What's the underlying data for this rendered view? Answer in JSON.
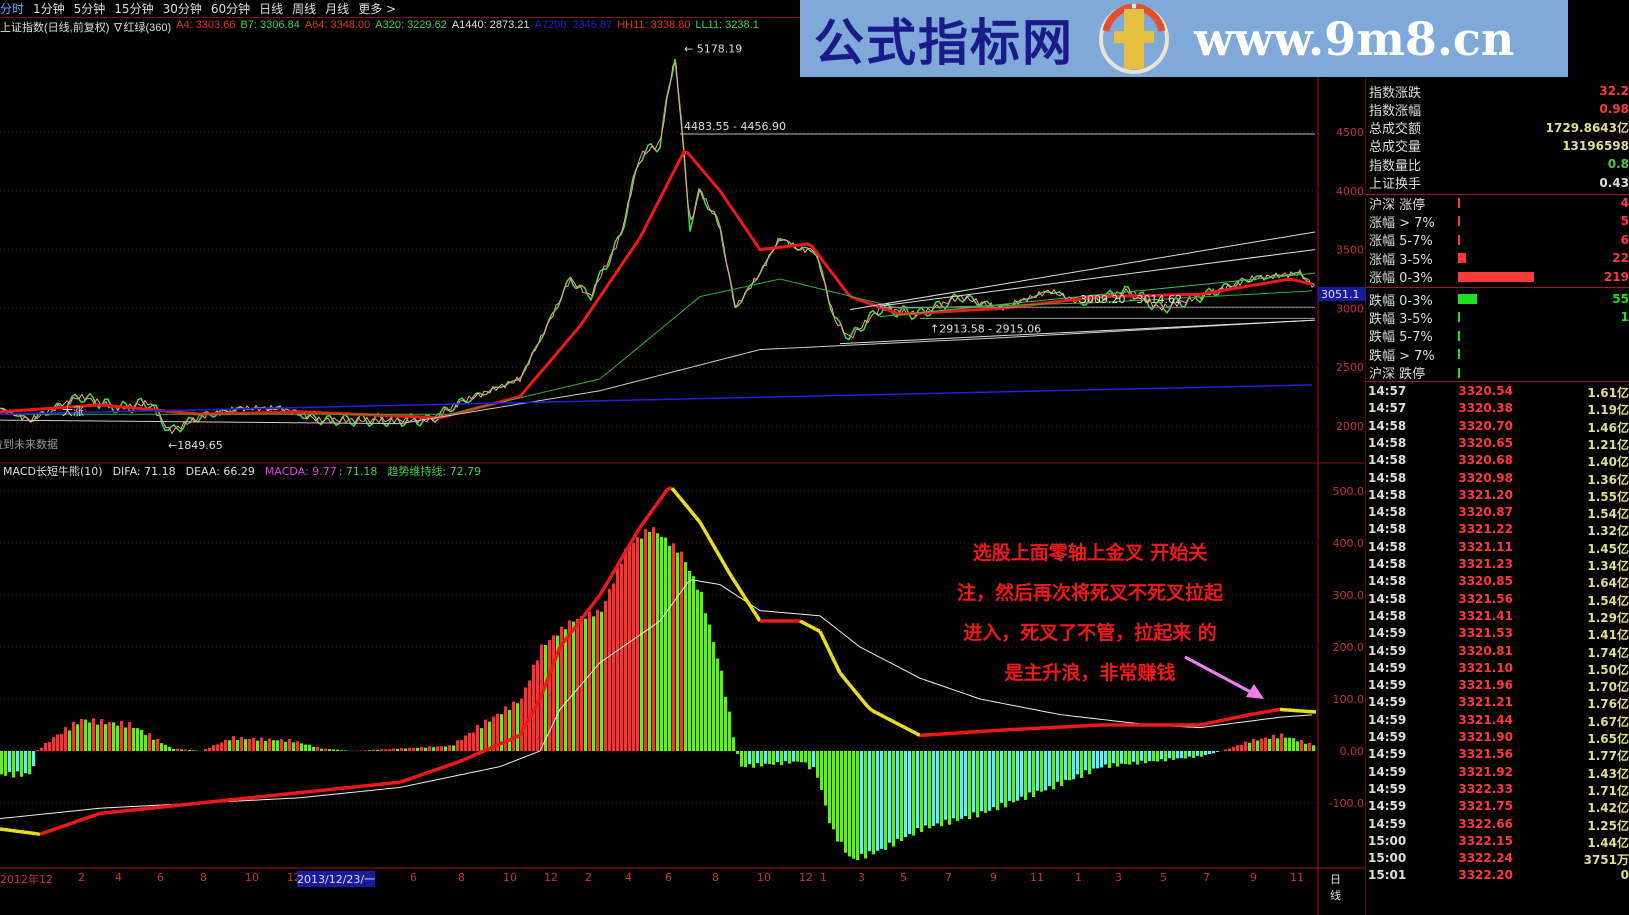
{
  "toolbar": {
    "periods": [
      "分时",
      "1分钟",
      "5分钟",
      "15分钟",
      "30分钟",
      "60分钟",
      "日线",
      "周线",
      "月线",
      "更多 >"
    ],
    "active": "日线"
  },
  "indicator_line": [
    {
      "text": "上证指数(日线,前复权) ∇红绿(360)",
      "color": "#dddddd"
    },
    {
      "text": "A4: 3303.66",
      "color": "#e03030"
    },
    {
      "text": "B7: 3306.84",
      "color": "#40d040"
    },
    {
      "text": "A64: 3348.00",
      "color": "#e03030"
    },
    {
      "text": "A320: 3229.62",
      "color": "#40d040"
    },
    {
      "text": "A1440: 2873.21",
      "color": "#dddddd"
    },
    {
      "text": "A7200: 2345.87",
      "color": "#2020d0"
    },
    {
      "text": "HH11: 3338.80",
      "color": "#e03030"
    },
    {
      "text": "LL11: 3238.1",
      "color": "#40d040"
    }
  ],
  "watermark": {
    "site_name": "公式指标网",
    "url": "www.9m8.cn",
    "logo_text": "www.9m8.cn"
  },
  "price_chart": {
    "y_ticks": [
      "4500",
      "4000",
      "3500",
      "3000",
      "2500",
      "2000"
    ],
    "current_price_tag": "3051.1",
    "annotations": {
      "peak": "5178.19",
      "low": "1849.65",
      "hline": "4483.55 - 4456.90",
      "box1": "3009.20 - 3014.62",
      "box2": "2913.58 - 2915.06",
      "big": "大涨",
      "future": "拉到未来数据"
    }
  },
  "macd_panel": {
    "header": [
      {
        "text": "MACD长短牛熊(10)",
        "color": "#dddddd"
      },
      {
        "text": "DIFA: 71.18",
        "color": "#dddddd"
      },
      {
        "text": "DEAA: 66.29",
        "color": "#dddddd"
      },
      {
        "text": "MACDA: 9.77",
        "color": "#e040e0"
      },
      {
        "text": ": 71.18",
        "color": "#40d040"
      },
      {
        "text": "趋势维持线: 72.79",
        "color": "#40d040"
      }
    ],
    "y_ticks": [
      "500.0",
      "400.0",
      "300.0",
      "200.0",
      "100.0",
      "0.00",
      "-100.0"
    ],
    "note_lines": [
      "选股上面零轴上金叉  开始关",
      "注，然后再次将死叉不死叉拉起",
      "进入，死叉了不管，拉起来 的",
      "是主升浪，非常赚钱"
    ]
  },
  "x_axis": {
    "labels": [
      "2012年12",
      "2",
      "4",
      "6",
      "8",
      "10",
      "12",
      "6",
      "8",
      "10",
      "12",
      "2",
      "4",
      "6",
      "8",
      "10",
      "12",
      "1",
      "3",
      "5",
      "7",
      "9",
      "11",
      "1",
      "3",
      "5",
      "7",
      "9",
      "11"
    ],
    "cursor_date": "2013/12/23/一",
    "period_label": "日线"
  },
  "stats": [
    {
      "label": "指数涨跌",
      "value": "32.2",
      "color": "#ff3838"
    },
    {
      "label": "指数涨幅",
      "value": "0.98",
      "color": "#ff3838"
    },
    {
      "label": "总成交额",
      "value": "1729.8643亿",
      "color": "#dede90"
    },
    {
      "label": "总成交量",
      "value": "13196598",
      "color": "#dede90"
    },
    {
      "label": "指数量比",
      "value": "0.8",
      "color": "#40d040"
    },
    {
      "label": "上证换手",
      "value": "0.43",
      "color": "#dddddd"
    }
  ],
  "breadth": [
    {
      "label": "沪深 涨停",
      "value": "4",
      "color": "#ff3838",
      "fill": 0.01
    },
    {
      "label": "涨幅 > 7%",
      "value": "5",
      "color": "#ff3838",
      "fill": 0.02
    },
    {
      "label": "涨幅 5-7%",
      "value": "6",
      "color": "#ff3838",
      "fill": 0.02
    },
    {
      "label": "涨幅 3-5%",
      "value": "22",
      "color": "#ff3838",
      "fill": 0.1
    },
    {
      "label": "涨幅 0-3%",
      "value": "219",
      "color": "#ff3838",
      "fill": 1.0
    },
    {
      "label": "跌幅 0-3%",
      "value": "55",
      "color": "#20e020",
      "fill": 0.25
    },
    {
      "label": "跌幅 3-5%",
      "value": "1",
      "color": "#20e020",
      "fill": 0.005
    },
    {
      "label": "跌幅 5-7%",
      "value": "",
      "color": "#20e020",
      "fill": 0.005
    },
    {
      "label": "跌幅 > 7%",
      "value": "",
      "color": "#20e020",
      "fill": 0.005
    },
    {
      "label": "沪深 跌停",
      "value": "",
      "color": "#20e020",
      "fill": 0.005
    }
  ],
  "ticks": [
    [
      "14:57",
      "3320.54",
      "1.61亿"
    ],
    [
      "14:57",
      "3320.38",
      "1.19亿"
    ],
    [
      "14:58",
      "3320.70",
      "1.46亿"
    ],
    [
      "14:58",
      "3320.65",
      "1.21亿"
    ],
    [
      "14:58",
      "3320.68",
      "1.40亿"
    ],
    [
      "14:58",
      "3320.98",
      "1.36亿"
    ],
    [
      "14:58",
      "3321.20",
      "1.55亿"
    ],
    [
      "14:58",
      "3320.87",
      "1.54亿"
    ],
    [
      "14:58",
      "3321.22",
      "1.32亿"
    ],
    [
      "14:58",
      "3321.11",
      "1.45亿"
    ],
    [
      "14:58",
      "3321.23",
      "1.34亿"
    ],
    [
      "14:58",
      "3320.85",
      "1.64亿"
    ],
    [
      "14:58",
      "3321.56",
      "1.54亿"
    ],
    [
      "14:58",
      "3321.41",
      "1.29亿"
    ],
    [
      "14:59",
      "3321.53",
      "1.41亿"
    ],
    [
      "14:59",
      "3320.81",
      "1.74亿"
    ],
    [
      "14:59",
      "3321.10",
      "1.50亿"
    ],
    [
      "14:59",
      "3321.96",
      "1.70亿"
    ],
    [
      "14:59",
      "3321.21",
      "1.76亿"
    ],
    [
      "14:59",
      "3321.44",
      "1.67亿"
    ],
    [
      "14:59",
      "3321.90",
      "1.65亿"
    ],
    [
      "14:59",
      "3321.56",
      "1.77亿"
    ],
    [
      "14:59",
      "3321.92",
      "1.43亿"
    ],
    [
      "14:59",
      "3322.33",
      "1.71亿"
    ],
    [
      "14:59",
      "3321.75",
      "1.42亿"
    ],
    [
      "14:59",
      "3322.66",
      "1.25亿"
    ],
    [
      "15:00",
      "3322.15",
      "1.44亿"
    ],
    [
      "15:00",
      "3322.24",
      "3751万"
    ],
    [
      "15:01",
      "3322.20",
      "0"
    ]
  ]
}
